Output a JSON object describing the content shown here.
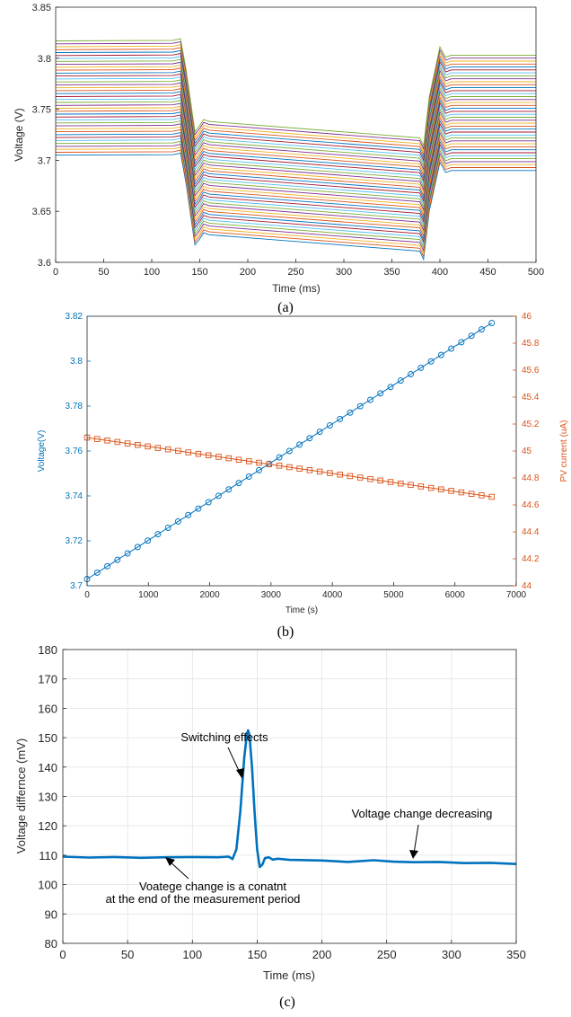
{
  "chart_data": [
    {
      "type": "line",
      "panel_caption": "(a)",
      "xlabel": "Time (ms)",
      "ylabel": "Voltage (V)",
      "xlim": [
        0,
        500
      ],
      "ylim": [
        3.6,
        3.85
      ],
      "x_ticks": [
        "0",
        "50",
        "100",
        "150",
        "200",
        "250",
        "300",
        "350",
        "400",
        "450",
        "500"
      ],
      "y_ticks": [
        "3.6",
        "3.65",
        "3.7",
        "3.75",
        "3.8",
        "3.85"
      ],
      "series_count": 40,
      "series_shape": {
        "initial_level_range": [
          3.705,
          3.817
        ],
        "drop_start_ms": 130,
        "drop_end_ms": 148,
        "dropped_level_start_range": [
          3.627,
          3.738
        ],
        "dropped_level_end_range": [
          3.611,
          3.722
        ],
        "recovery_start_ms": 383,
        "recovery_end_ms": 400,
        "final_level_range": [
          3.69,
          3.803
        ],
        "x_end_ms": 500
      },
      "colors": [
        "#0072BD",
        "#D95319",
        "#EDB120",
        "#7E2F8E",
        "#77AC30",
        "#4DBEEE",
        "#A2142F"
      ],
      "grid": false
    },
    {
      "type": "line",
      "panel_caption": "(b)",
      "xlabel": "Time (s)",
      "ylabel_left": "Voltage(V)",
      "ylabel_right": "PV current (uA)",
      "xlim": [
        0,
        7000
      ],
      "ylim_left": [
        3.7,
        3.82
      ],
      "ylim_right": [
        44,
        46
      ],
      "x_ticks": [
        "0",
        "1000",
        "2000",
        "3000",
        "4000",
        "5000",
        "6000",
        "7000"
      ],
      "y_ticks_left": [
        "3.7",
        "3.72",
        "3.74",
        "3.76",
        "3.78",
        "3.8",
        "3.82"
      ],
      "y_ticks_right": [
        "44",
        "44.2",
        "44.4",
        "44.6",
        "44.8",
        "45",
        "45.2",
        "45.4",
        "45.6",
        "45.8",
        "46"
      ],
      "series": [
        {
          "axis": "left",
          "marker": "circle",
          "color": "#0072BD",
          "x_start": 0,
          "x_end": 6600,
          "n_points": 41,
          "y_start": 3.703,
          "y_end": 3.817
        },
        {
          "axis": "right",
          "marker": "square",
          "color": "#D95319",
          "x_start": 0,
          "x_end": 6600,
          "n_points": 41,
          "y_start": 45.1,
          "y_end": 44.66
        }
      ],
      "grid": false
    },
    {
      "type": "line",
      "panel_caption": "(c)",
      "xlabel": "Time (ms)",
      "ylabel": "Voltage differnce (mV)",
      "xlim": [
        0,
        350
      ],
      "ylim": [
        80,
        180
      ],
      "x_ticks": [
        "0",
        "50",
        "100",
        "150",
        "200",
        "250",
        "300",
        "350"
      ],
      "y_ticks": [
        "80",
        "90",
        "100",
        "110",
        "120",
        "130",
        "140",
        "150",
        "160",
        "170",
        "180"
      ],
      "grid": true,
      "series": [
        {
          "color": "#0072BD",
          "points": [
            [
              0,
              109.5
            ],
            [
              20,
              109.2
            ],
            [
              40,
              109.4
            ],
            [
              60,
              109.1
            ],
            [
              80,
              109.3
            ],
            [
              100,
              109.4
            ],
            [
              120,
              109.3
            ],
            [
              128,
              109.5
            ],
            [
              131,
              108.7
            ],
            [
              134,
              112
            ],
            [
              137,
              125
            ],
            [
              140,
              143
            ],
            [
              142,
              151
            ],
            [
              143,
              152.5
            ],
            [
              144,
              151
            ],
            [
              146,
              140
            ],
            [
              148,
              125
            ],
            [
              150,
              112
            ],
            [
              152,
              106
            ],
            [
              154,
              106.8
            ],
            [
              156,
              109
            ],
            [
              159,
              109.3
            ],
            [
              162,
              108.5
            ],
            [
              166,
              108.8
            ],
            [
              175,
              108.4
            ],
            [
              200,
              108.2
            ],
            [
              220,
              107.7
            ],
            [
              240,
              108.3
            ],
            [
              255,
              107.8
            ],
            [
              270,
              107.6
            ],
            [
              290,
              107.7
            ],
            [
              310,
              107.3
            ],
            [
              330,
              107.4
            ],
            [
              350,
              107.0
            ]
          ]
        }
      ],
      "annotations": [
        {
          "text": "Switching effects",
          "points_to": [
            143,
            152.5
          ]
        },
        {
          "text": "Voltage change decreasing",
          "points_to": [
            270,
            108
          ]
        },
        {
          "text_lines": [
            "Voatege change is a conatnt",
            "at the end of the measurement period"
          ],
          "points_to": [
            80,
            109.4
          ]
        }
      ]
    }
  ]
}
